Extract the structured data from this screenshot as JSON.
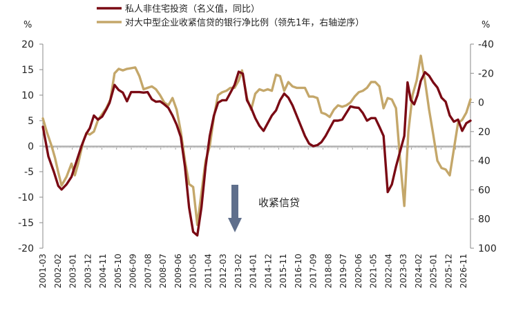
{
  "chart_data": {
    "type": "line",
    "legend_position": "top",
    "grid": false,
    "left_axis": {
      "unit_label": "%",
      "ylim": [
        -20,
        20
      ],
      "ticks": [
        20,
        15,
        10,
        5,
        0,
        -5,
        -10,
        -15,
        -20
      ],
      "tick_labels": [
        "20",
        "15",
        "10",
        "5",
        "0",
        "-5",
        "-10",
        "-15",
        "-20"
      ]
    },
    "right_axis": {
      "unit_label": "%",
      "inverted": true,
      "ylim": [
        -40,
        100
      ],
      "ticks": [
        -40,
        -20,
        0,
        20,
        40,
        60,
        80,
        100
      ],
      "tick_labels": [
        "-40",
        "-20",
        "0",
        "20",
        "40",
        "60",
        "80",
        "100"
      ]
    },
    "x_axis": {
      "range": [
        2001.167,
        2027.0
      ],
      "tick_labels": [
        "2001-03",
        "2002-02",
        "2003-01",
        "2003-12",
        "2004-11",
        "2005-10",
        "2006-09",
        "2007-08",
        "2008-07",
        "2009-06",
        "2010-05",
        "2011-04",
        "2012-03",
        "2013-02",
        "2014-01",
        "2014-12",
        "2015-11",
        "2016-10",
        "2017-09",
        "2018-08",
        "2019-07",
        "2020-06",
        "2021-05",
        "2022-04",
        "2023-03",
        "2024-02",
        "2025-01",
        "2025-12",
        "2026-11"
      ]
    },
    "series": [
      {
        "name": "私人非住宅投资（名义值，同比）",
        "axis": "left",
        "color": "#7a0a14",
        "points": [
          [
            2001.17,
            3.8
          ],
          [
            2001.5,
            -2
          ],
          [
            2001.83,
            -5
          ],
          [
            2002.1,
            -7.8
          ],
          [
            2002.3,
            -8.5
          ],
          [
            2002.6,
            -7.5
          ],
          [
            2002.9,
            -6
          ],
          [
            2003.2,
            -3
          ],
          [
            2003.5,
            0
          ],
          [
            2003.8,
            2.5
          ],
          [
            2004.0,
            3.5
          ],
          [
            2004.25,
            6
          ],
          [
            2004.5,
            5.2
          ],
          [
            2004.75,
            5.8
          ],
          [
            2005.0,
            7.2
          ],
          [
            2005.2,
            8.5
          ],
          [
            2005.5,
            12
          ],
          [
            2005.75,
            11
          ],
          [
            2006.0,
            10.5
          ],
          [
            2006.25,
            8.8
          ],
          [
            2006.5,
            10.6
          ],
          [
            2006.75,
            10.6
          ],
          [
            2007.0,
            10.6
          ],
          [
            2007.25,
            10.5
          ],
          [
            2007.5,
            10.6
          ],
          [
            2007.75,
            9.2
          ],
          [
            2008.0,
            8.7
          ],
          [
            2008.25,
            8.8
          ],
          [
            2008.5,
            8.2
          ],
          [
            2008.75,
            7.5
          ],
          [
            2009.0,
            6
          ],
          [
            2009.25,
            4.2
          ],
          [
            2009.5,
            1.8
          ],
          [
            2009.75,
            -4
          ],
          [
            2010.0,
            -12
          ],
          [
            2010.25,
            -16.8
          ],
          [
            2010.5,
            -17.5
          ],
          [
            2010.75,
            -12
          ],
          [
            2011.0,
            -4
          ],
          [
            2011.25,
            2
          ],
          [
            2011.5,
            6
          ],
          [
            2011.75,
            8.5
          ],
          [
            2012.0,
            9
          ],
          [
            2012.25,
            9
          ],
          [
            2012.5,
            10.5
          ],
          [
            2012.75,
            12
          ],
          [
            2013.0,
            14.6
          ],
          [
            2013.25,
            14.2
          ],
          [
            2013.5,
            9
          ],
          [
            2013.75,
            7.5
          ],
          [
            2014.0,
            5.5
          ],
          [
            2014.25,
            4
          ],
          [
            2014.5,
            3
          ],
          [
            2014.75,
            4.5
          ],
          [
            2015.0,
            6
          ],
          [
            2015.25,
            7
          ],
          [
            2015.5,
            9
          ],
          [
            2015.75,
            10.3
          ],
          [
            2016.0,
            9.5
          ],
          [
            2016.25,
            8
          ],
          [
            2016.5,
            6
          ],
          [
            2016.75,
            4
          ],
          [
            2017.0,
            2
          ],
          [
            2017.25,
            0.5
          ],
          [
            2017.5,
            0
          ],
          [
            2017.75,
            0.2
          ],
          [
            2018.0,
            0.8
          ],
          [
            2018.25,
            2
          ],
          [
            2018.5,
            3.5
          ],
          [
            2018.75,
            5
          ],
          [
            2019.0,
            5
          ],
          [
            2019.25,
            5.2
          ],
          [
            2019.5,
            6.5
          ],
          [
            2019.75,
            7.8
          ],
          [
            2020.0,
            7.6
          ],
          [
            2020.25,
            7.5
          ],
          [
            2020.5,
            6.5
          ],
          [
            2020.75,
            5
          ],
          [
            2021.0,
            5.5
          ],
          [
            2021.25,
            5.5
          ],
          [
            2021.5,
            3.8
          ],
          [
            2021.75,
            2
          ],
          [
            2022.0,
            -9
          ],
          [
            2022.25,
            -7.5
          ],
          [
            2022.5,
            -4
          ],
          [
            2022.75,
            -1
          ],
          [
            2023.0,
            2
          ],
          [
            2023.2,
            12.5
          ],
          [
            2023.4,
            9
          ],
          [
            2023.6,
            8.2
          ],
          [
            2023.8,
            10
          ],
          [
            2024.0,
            12.8
          ],
          [
            2024.25,
            14.5
          ],
          [
            2024.5,
            13.8
          ],
          [
            2024.75,
            12.5
          ],
          [
            2025.0,
            11.5
          ],
          [
            2025.25,
            9.5
          ],
          [
            2025.5,
            8.7
          ],
          [
            2025.75,
            6
          ],
          [
            2026.0,
            4.8
          ],
          [
            2026.25,
            5.2
          ],
          [
            2026.5,
            3
          ],
          [
            2026.75,
            4.5
          ],
          [
            2027.0,
            5
          ],
          [
            2027.25,
            5.5
          ],
          [
            2027.5,
            6.5
          ],
          [
            2027.75,
            8.5
          ]
        ]
      },
      {
        "name": "对大中型企业收紧信贷的银行净比例（领先1年，右轴逆序）",
        "axis": "right",
        "color": "#c4a76a",
        "points": [
          [
            2001.17,
            11
          ],
          [
            2001.4,
            20
          ],
          [
            2001.7,
            30
          ],
          [
            2001.9,
            38
          ],
          [
            2002.1,
            48
          ],
          [
            2002.3,
            57
          ],
          [
            2002.6,
            51
          ],
          [
            2002.9,
            42
          ],
          [
            2003.1,
            50
          ],
          [
            2003.3,
            42
          ],
          [
            2003.6,
            27
          ],
          [
            2003.8,
            21
          ],
          [
            2004.0,
            22
          ],
          [
            2004.25,
            20
          ],
          [
            2004.5,
            12
          ],
          [
            2004.75,
            8
          ],
          [
            2005.0,
            4
          ],
          [
            2005.25,
            -2
          ],
          [
            2005.5,
            -20
          ],
          [
            2005.75,
            -23
          ],
          [
            2006.0,
            -22
          ],
          [
            2006.25,
            -23
          ],
          [
            2006.5,
            -23.5
          ],
          [
            2006.75,
            -24
          ],
          [
            2007.0,
            -18
          ],
          [
            2007.25,
            -9
          ],
          [
            2007.5,
            -10
          ],
          [
            2007.75,
            -11
          ],
          [
            2008.0,
            -9
          ],
          [
            2008.25,
            -5
          ],
          [
            2008.5,
            0
          ],
          [
            2008.75,
            2
          ],
          [
            2009.0,
            -3
          ],
          [
            2009.25,
            5
          ],
          [
            2009.5,
            20
          ],
          [
            2009.75,
            40
          ],
          [
            2010.0,
            56
          ],
          [
            2010.25,
            58
          ],
          [
            2010.5,
            84
          ],
          [
            2010.75,
            62
          ],
          [
            2011.0,
            40
          ],
          [
            2011.25,
            30
          ],
          [
            2011.5,
            10
          ],
          [
            2011.75,
            -5
          ],
          [
            2012.0,
            -7
          ],
          [
            2012.25,
            -8
          ],
          [
            2012.5,
            -10
          ],
          [
            2012.75,
            -10
          ],
          [
            2013.0,
            -15
          ],
          [
            2013.2,
            -22
          ],
          [
            2013.5,
            -3
          ],
          [
            2013.75,
            5
          ],
          [
            2014.0,
            -6
          ],
          [
            2014.25,
            -9
          ],
          [
            2014.5,
            -8
          ],
          [
            2014.75,
            -9
          ],
          [
            2015.0,
            -8
          ],
          [
            2015.25,
            -19
          ],
          [
            2015.5,
            -18
          ],
          [
            2015.75,
            -8
          ],
          [
            2016.0,
            -14
          ],
          [
            2016.25,
            -11
          ],
          [
            2016.5,
            -10
          ],
          [
            2016.75,
            -10
          ],
          [
            2017.0,
            -10
          ],
          [
            2017.25,
            -4
          ],
          [
            2017.5,
            -4
          ],
          [
            2017.75,
            -3
          ],
          [
            2018.0,
            7
          ],
          [
            2018.25,
            8
          ],
          [
            2018.5,
            10
          ],
          [
            2018.75,
            5
          ],
          [
            2019.0,
            2
          ],
          [
            2019.25,
            3
          ],
          [
            2019.5,
            2
          ],
          [
            2019.75,
            0
          ],
          [
            2020.0,
            -4
          ],
          [
            2020.25,
            -7
          ],
          [
            2020.5,
            -8
          ],
          [
            2020.75,
            -10
          ],
          [
            2021.0,
            -14
          ],
          [
            2021.25,
            -14
          ],
          [
            2021.5,
            -11
          ],
          [
            2021.75,
            4
          ],
          [
            2022.0,
            -3
          ],
          [
            2022.25,
            -2
          ],
          [
            2022.5,
            4
          ],
          [
            2022.75,
            40
          ],
          [
            2023.0,
            71
          ],
          [
            2023.25,
            20
          ],
          [
            2023.5,
            -5
          ],
          [
            2023.75,
            -15
          ],
          [
            2024.0,
            -32
          ],
          [
            2024.25,
            -15
          ],
          [
            2024.5,
            5
          ],
          [
            2024.75,
            22
          ],
          [
            2025.0,
            40
          ],
          [
            2025.25,
            45
          ],
          [
            2025.5,
            46
          ],
          [
            2025.75,
            50
          ],
          [
            2026.0,
            32
          ],
          [
            2026.25,
            14
          ],
          [
            2026.5,
            12
          ],
          [
            2026.75,
            7
          ],
          [
            2027.0,
            -2
          ],
          [
            2027.25,
            18
          ],
          [
            2027.5,
            9
          ],
          [
            2027.75,
            7
          ],
          [
            2028.0,
            6
          ],
          [
            2028.25,
            9
          ]
        ]
      }
    ],
    "annotations": [
      {
        "text": "收紧信贷",
        "arrow": "down",
        "x": 2013.2,
        "y_left": -7.5
      }
    ]
  }
}
